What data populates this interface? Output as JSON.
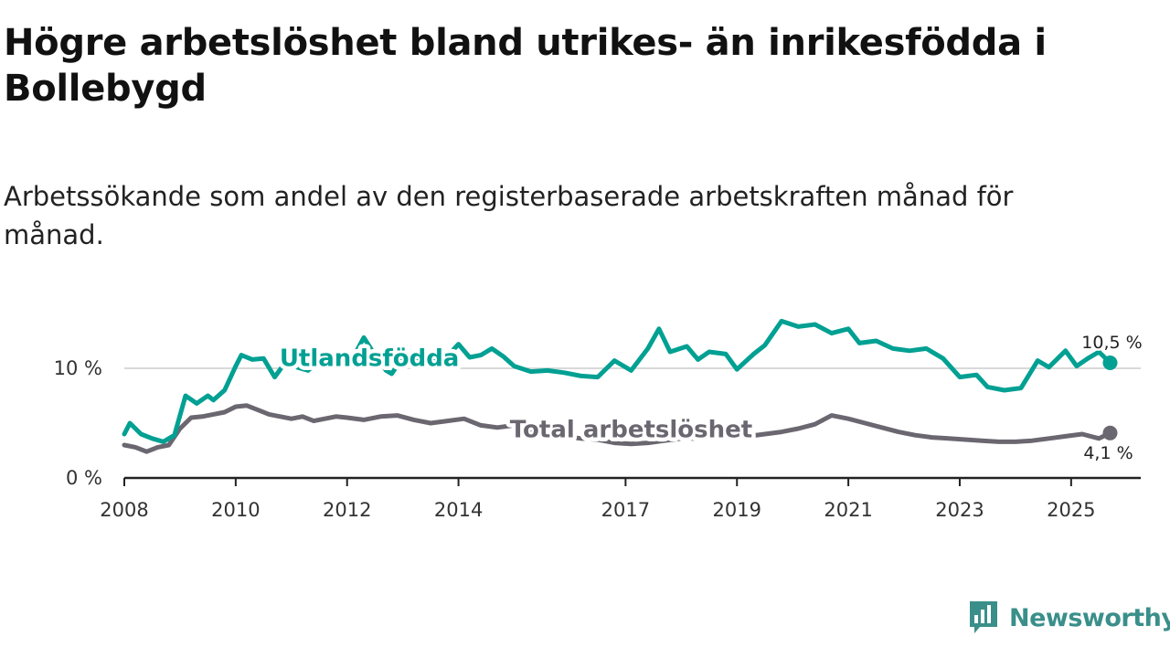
{
  "title": "Högre arbetslöshet bland utrikes- än inrikesfödda i Bollebygd",
  "subtitle": "Arbetssökande som andel av den registerbaserade arbetskraften månad för månad.",
  "brand": {
    "name": "Newsworthy",
    "color": "#3a8f8a",
    "icon": "bar-chart-bubble-icon"
  },
  "colors": {
    "foreign": "#00a093",
    "total": "#6b6770",
    "axis": "#222222",
    "grid": "#d9d9d9"
  },
  "chart_data": {
    "type": "line",
    "title": "Högre arbetslöshet bland utrikes- än inrikesfödda i Bollebygd",
    "xlabel": "",
    "ylabel": "",
    "xlim": [
      2008,
      2026.25
    ],
    "ylim": [
      0,
      15
    ],
    "y_ticks": [
      0,
      10
    ],
    "y_tick_labels": [
      "0 %",
      "10 %"
    ],
    "x_ticks": [
      2008,
      2010,
      2012,
      2014,
      2017,
      2019,
      2021,
      2023,
      2025
    ],
    "x_tick_labels": [
      "2008",
      "2010",
      "2012",
      "2014",
      "2017",
      "2019",
      "2021",
      "2023",
      "2025"
    ],
    "grid": "horizontal at 10",
    "series": [
      {
        "name": "Utlandsfödda",
        "color": "#00a093",
        "label_at": [
          2012.4,
          10.2
        ],
        "end_label": "10,5 %",
        "x": [
          2008.0,
          2008.1,
          2008.3,
          2008.5,
          2008.7,
          2008.9,
          2009.1,
          2009.3,
          2009.5,
          2009.6,
          2009.8,
          2010.0,
          2010.1,
          2010.3,
          2010.5,
          2010.7,
          2010.9,
          2011.1,
          2011.3,
          2011.5,
          2011.7,
          2011.9,
          2012.1,
          2012.3,
          2012.5,
          2012.7,
          2012.8,
          2013.0,
          2013.2,
          2013.4,
          2013.6,
          2013.8,
          2014.0,
          2014.2,
          2014.4,
          2014.6,
          2014.8,
          2015.0,
          2015.3,
          2015.6,
          2015.9,
          2016.2,
          2016.5,
          2016.8,
          2017.1,
          2017.4,
          2017.6,
          2017.8,
          2018.1,
          2018.3,
          2018.5,
          2018.8,
          2019.0,
          2019.3,
          2019.5,
          2019.8,
          2020.1,
          2020.4,
          2020.7,
          2021.0,
          2021.2,
          2021.5,
          2021.8,
          2022.1,
          2022.4,
          2022.7,
          2023.0,
          2023.3,
          2023.5,
          2023.8,
          2024.1,
          2024.4,
          2024.6,
          2024.9,
          2025.1,
          2025.3,
          2025.5,
          2025.7
        ],
        "y": [
          4.0,
          5.0,
          4.0,
          3.6,
          3.3,
          3.9,
          7.5,
          6.8,
          7.5,
          7.1,
          8.0,
          10.2,
          11.2,
          10.8,
          10.9,
          9.2,
          10.6,
          10.1,
          9.8,
          10.8,
          10.6,
          11.0,
          10.9,
          12.8,
          11.2,
          9.8,
          9.5,
          11.0,
          10.6,
          11.4,
          10.5,
          11.1,
          12.2,
          11.0,
          11.2,
          11.8,
          11.1,
          10.2,
          9.7,
          9.8,
          9.6,
          9.3,
          9.2,
          10.7,
          9.8,
          11.8,
          13.6,
          11.5,
          12.0,
          10.8,
          11.5,
          11.3,
          9.9,
          11.3,
          12.1,
          14.3,
          13.8,
          14.0,
          13.2,
          13.6,
          12.3,
          12.5,
          11.8,
          11.6,
          11.8,
          10.9,
          9.2,
          9.4,
          8.3,
          8.0,
          8.2,
          10.7,
          10.1,
          11.6,
          10.2,
          10.9,
          11.5,
          10.5
        ]
      },
      {
        "name": "Total arbetslöshet",
        "color": "#6b6770",
        "label_at": [
          2017.1,
          3.7
        ],
        "end_label": "4,1 %",
        "x": [
          2008.0,
          2008.2,
          2008.4,
          2008.6,
          2008.8,
          2009.0,
          2009.2,
          2009.4,
          2009.6,
          2009.8,
          2010.0,
          2010.2,
          2010.4,
          2010.6,
          2010.8,
          2011.0,
          2011.2,
          2011.4,
          2011.6,
          2011.8,
          2012.0,
          2012.3,
          2012.6,
          2012.9,
          2013.2,
          2013.5,
          2013.8,
          2014.1,
          2014.4,
          2014.7,
          2015.0,
          2015.3,
          2015.6,
          2015.9,
          2016.2,
          2016.5,
          2016.8,
          2017.1,
          2017.4,
          2017.7,
          2018.0,
          2018.3,
          2018.6,
          2018.9,
          2019.2,
          2019.5,
          2019.8,
          2020.1,
          2020.4,
          2020.7,
          2021.0,
          2021.3,
          2021.6,
          2021.9,
          2022.2,
          2022.5,
          2022.8,
          2023.1,
          2023.4,
          2023.7,
          2024.0,
          2024.3,
          2024.6,
          2024.9,
          2025.2,
          2025.5,
          2025.7
        ],
        "y": [
          3.0,
          2.8,
          2.4,
          2.8,
          3.0,
          4.5,
          5.5,
          5.6,
          5.8,
          6.0,
          6.5,
          6.6,
          6.2,
          5.8,
          5.6,
          5.4,
          5.6,
          5.2,
          5.4,
          5.6,
          5.5,
          5.3,
          5.6,
          5.7,
          5.3,
          5.0,
          5.2,
          5.4,
          4.8,
          4.6,
          4.8,
          4.4,
          4.0,
          3.8,
          3.6,
          3.5,
          3.2,
          3.1,
          3.2,
          3.4,
          3.6,
          3.6,
          3.7,
          3.7,
          3.8,
          4.0,
          4.2,
          4.5,
          4.9,
          5.7,
          5.4,
          5.0,
          4.6,
          4.2,
          3.9,
          3.7,
          3.6,
          3.5,
          3.4,
          3.3,
          3.3,
          3.4,
          3.6,
          3.8,
          4.0,
          3.6,
          4.1
        ]
      }
    ]
  }
}
